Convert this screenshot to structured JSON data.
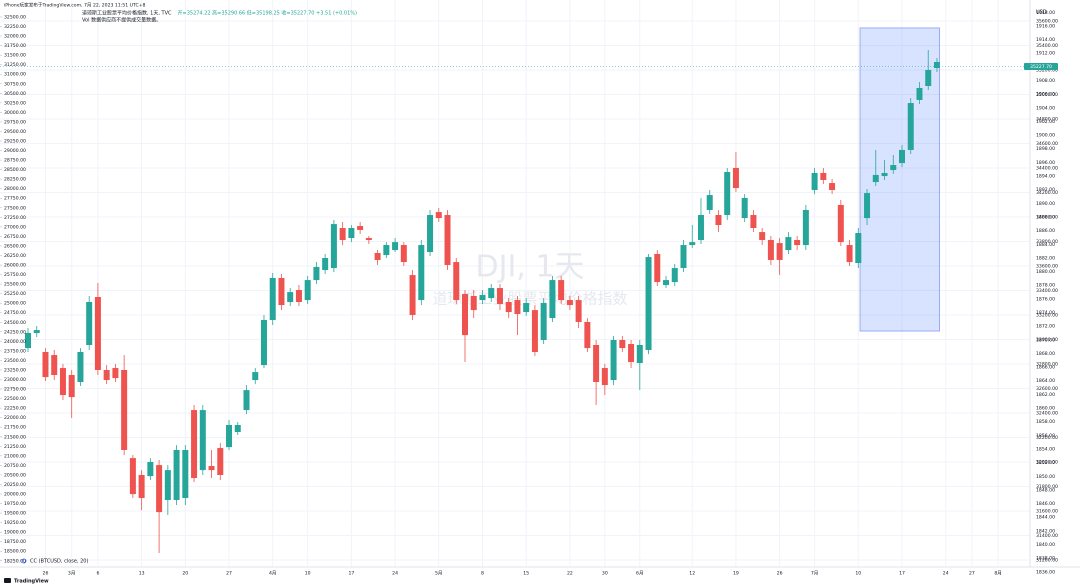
{
  "chart_data": {
    "type": "candlestick",
    "posted": "iPhone玩家发布于TradingView.com, 7月 22, 2023 11:51 UTC+8",
    "title": "道琼斯工业股票平均价格指数, 1天, TVC",
    "ohlc_text": "开=35274.22 高=35290.66 低=35198.25 收=35227.70 +3.51 (+0.01%)",
    "volume_note": "Vol 数据供应商不提供成交量数据。",
    "watermark": "DJI, 1天",
    "watermark_subtitle": "道琼斯工业股票平均价格指数",
    "indicator": "CC (BTCUSD, close, 20)",
    "currency": "USD",
    "brand": "TradingView",
    "last_price": {
      "value": 35227.7,
      "label": "35227.70"
    },
    "up_color": "#26a69a",
    "down_color": "#ef5350",
    "grid": true,
    "categories": [
      null,
      null,
      "26",
      null,
      null,
      "3月",
      null,
      null,
      "6",
      null,
      null,
      null,
      null,
      "13",
      null,
      null,
      null,
      null,
      "20",
      null,
      null,
      null,
      null,
      "27",
      null,
      null,
      null,
      null,
      "4月",
      null,
      null,
      null,
      "10",
      null,
      null,
      null,
      null,
      "17",
      null,
      null,
      null,
      null,
      "24",
      null,
      null,
      null,
      null,
      "5月",
      null,
      null,
      null,
      null,
      "8",
      null,
      null,
      null,
      null,
      "15",
      null,
      null,
      null,
      null,
      "22",
      null,
      null,
      null,
      "30",
      null,
      null,
      null,
      "6月",
      null,
      null,
      null,
      null,
      null,
      "12",
      null,
      null,
      null,
      null,
      "19",
      null,
      null,
      null,
      null,
      "26",
      null,
      null,
      null,
      "7月",
      null,
      null,
      null,
      null,
      "10",
      null,
      null,
      null,
      null,
      "17",
      null,
      null,
      null,
      null,
      "24",
      null,
      null,
      "27",
      null,
      null,
      "8月"
    ],
    "open": [
      32930,
      33053,
      32898,
      32873,
      32767,
      32710,
      32653,
      32955,
      33347,
      32751,
      32767,
      32751,
      32032,
      31894,
      31885,
      31975,
      31690,
      31690,
      31706,
      32424,
      31934,
      31967,
      32114,
      32122,
      32245,
      32424,
      32669,
      32791,
      33159,
      33502,
      33306,
      33404,
      33322,
      33485,
      33567,
      33583,
      33910,
      33828,
      33926,
      33828,
      33706,
      33689,
      33730,
      33771,
      33526,
      33322,
      33714,
      34040,
      34016,
      33632,
      33371,
      33355,
      33322,
      33338,
      33420,
      33306,
      33322,
      33224,
      33240,
      32996,
      33175,
      33485,
      33322,
      33322,
      33143,
      32955,
      32767,
      32669,
      32996,
      32963,
      32808,
      32914,
      33698,
      33445,
      33469,
      33583,
      33771,
      33812,
      34057,
      34016,
      34016,
      34400,
      33991,
      34016,
      33877,
      33812,
      33787,
      33730,
      33812,
      33771,
      34220,
      34359,
      34277,
      34098,
      33771,
      33624,
      33991,
      34285,
      34334,
      34383,
      34440,
      34547,
      34955,
      35069,
      35216,
      null,
      null,
      null,
      null,
      null,
      null,
      null
    ],
    "high": [
      33094,
      33110,
      32930,
      32914,
      32800,
      32751,
      32930,
      33355,
      33461,
      32791,
      32800,
      32873,
      32057,
      31934,
      32032,
      32016,
      31975,
      32138,
      32138,
      32465,
      32465,
      32098,
      32155,
      32343,
      32326,
      32628,
      32767,
      33200,
      33543,
      33535,
      33420,
      33445,
      33518,
      33632,
      33698,
      33975,
      33959,
      33934,
      33959,
      33845,
      33730,
      33795,
      33828,
      33795,
      33567,
      33812,
      34057,
      34073,
      34057,
      33665,
      33404,
      33404,
      33404,
      33453,
      33453,
      33338,
      33355,
      33338,
      33281,
      33338,
      33518,
      33518,
      33355,
      33355,
      33175,
      32996,
      32800,
      33028,
      33028,
      32996,
      32996,
      33698,
      33730,
      33518,
      33616,
      33812,
      33934,
      34155,
      34220,
      34057,
      34400,
      34530,
      34187,
      34057,
      33910,
      33845,
      33828,
      33877,
      33845,
      34098,
      34400,
      34400,
      34310,
      34139,
      33812,
      33910,
      34228,
      34547,
      34465,
      34506,
      34587,
      34971,
      35102,
      35363,
      35298,
      null,
      null,
      null,
      null,
      null,
      null,
      null
    ],
    "low": [
      32898,
      33020,
      32661,
      32669,
      32506,
      32359,
      32620,
      32914,
      32710,
      32636,
      32653,
      32057,
      31706,
      31608,
      31853,
      31257,
      31567,
      31649,
      31649,
      31836,
      31894,
      31869,
      31853,
      32098,
      32220,
      32391,
      32636,
      32767,
      33118,
      33240,
      33273,
      33273,
      33290,
      33453,
      33535,
      33551,
      33771,
      33795,
      33861,
      33779,
      33608,
      33665,
      33714,
      33600,
      33159,
      33281,
      33681,
      33959,
      33567,
      33290,
      32816,
      33175,
      33290,
      33306,
      33240,
      33175,
      33036,
      33192,
      32865,
      32963,
      33143,
      33290,
      33240,
      33094,
      32898,
      32465,
      32547,
      32628,
      32898,
      32767,
      32587,
      32881,
      33436,
      33420,
      33436,
      33551,
      33747,
      33779,
      34024,
      33877,
      33975,
      34204,
      33959,
      33877,
      33771,
      33608,
      33526,
      33698,
      33730,
      33730,
      34187,
      34269,
      34187,
      33763,
      33600,
      33583,
      33934,
      34253,
      34302,
      34351,
      34408,
      34514,
      34922,
      35036,
      35183,
      null,
      null,
      null,
      null,
      null,
      null,
      null
    ],
    "close": [
      33053,
      33077,
      32693,
      32710,
      32547,
      32530,
      32898,
      33306,
      32751,
      32669,
      32685,
      32098,
      31738,
      31706,
      32000,
      31591,
      31934,
      32098,
      32098,
      31869,
      32424,
      31934,
      31894,
      32302,
      32302,
      32587,
      32734,
      33159,
      33502,
      33281,
      33387,
      33306,
      33485,
      33592,
      33665,
      33942,
      33812,
      33910,
      33894,
      33812,
      33649,
      33771,
      33795,
      33632,
      33200,
      33771,
      34016,
      33991,
      33608,
      33322,
      33036,
      33240,
      33363,
      33420,
      33290,
      33224,
      33208,
      33298,
      32898,
      33298,
      33485,
      33322,
      33281,
      33143,
      32930,
      32653,
      32628,
      32996,
      32930,
      32816,
      32955,
      33673,
      33469,
      33485,
      33583,
      33771,
      33795,
      34016,
      34179,
      33934,
      34367,
      34236,
      34155,
      33910,
      33812,
      33649,
      33649,
      33836,
      33771,
      34057,
      34359,
      34302,
      34220,
      33795,
      33632,
      33869,
      34195,
      34343,
      34359,
      34424,
      34547,
      34930,
      35053,
      35200,
      35265,
      null,
      null,
      null,
      null,
      null,
      null,
      null
    ],
    "highlight": {
      "from": 95.2,
      "to": 104.3,
      "top": 35543,
      "bottom": 33069
    },
    "ylim": [
      18087,
      32945
    ],
    "yticks": [
      {
        "value": 18250,
        "label": "18250.00"
      },
      {
        "value": 18500,
        "label": "18500.00"
      },
      {
        "value": 18750,
        "label": "18750.00"
      },
      {
        "value": 19000,
        "label": "19000.00"
      },
      {
        "value": 19250,
        "label": "19250.00"
      },
      {
        "value": 19500,
        "label": "19500.00"
      },
      {
        "value": 19750,
        "label": "19750.00"
      },
      {
        "value": 20000,
        "label": "20000.00"
      },
      {
        "value": 20250,
        "label": "20250.00"
      },
      {
        "value": 20500,
        "label": "20500.00"
      },
      {
        "value": 20750,
        "label": "20750.00"
      },
      {
        "value": 21000,
        "label": "21000.00"
      },
      {
        "value": 21250,
        "label": "21250.00"
      },
      {
        "value": 21500,
        "label": "21500.00"
      },
      {
        "value": 21750,
        "label": "21750.00"
      },
      {
        "value": 22000,
        "label": "22000.00"
      },
      {
        "value": 22250,
        "label": "22250.00"
      },
      {
        "value": 22500,
        "label": "22500.00"
      },
      {
        "value": 22750,
        "label": "22750.00"
      },
      {
        "value": 23000,
        "label": "23000.00"
      },
      {
        "value": 23250,
        "label": "23250.00"
      },
      {
        "value": 23500,
        "label": "23500.00"
      },
      {
        "value": 23750,
        "label": "23750.00"
      },
      {
        "value": 24000,
        "label": "24000.00"
      },
      {
        "value": 24250,
        "label": "24250.00"
      },
      {
        "value": 24500,
        "label": "24500.00"
      },
      {
        "value": 24750,
        "label": "24750.00"
      },
      {
        "value": 25000,
        "label": "25000.00"
      },
      {
        "value": 25250,
        "label": "25250.00"
      },
      {
        "value": 25500,
        "label": "25500.00"
      },
      {
        "value": 25750,
        "label": "25750.00"
      },
      {
        "value": 26000,
        "label": "26000.00"
      },
      {
        "value": 26250,
        "label": "26250.00"
      },
      {
        "value": 26500,
        "label": "26500.00"
      },
      {
        "value": 26750,
        "label": "26750.00"
      },
      {
        "value": 27000,
        "label": "27000.00"
      },
      {
        "value": 27250,
        "label": "27250.00"
      },
      {
        "value": 27500,
        "label": "27500.00"
      },
      {
        "value": 27750,
        "label": "27750.00"
      },
      {
        "value": 28000,
        "label": "28000.00"
      },
      {
        "value": 28250,
        "label": "28250.00"
      },
      {
        "value": 28500,
        "label": "28500.00"
      },
      {
        "value": 28750,
        "label": "28750.00"
      },
      {
        "value": 29000,
        "label": "29000.00"
      },
      {
        "value": 29250,
        "label": "29250.00"
      },
      {
        "value": 29500,
        "label": "29500.00"
      },
      {
        "value": 29750,
        "label": "29750.00"
      },
      {
        "value": 30000,
        "label": "30000.00"
      },
      {
        "value": 30250,
        "label": "30250.00"
      },
      {
        "value": 30500,
        "label": "30500.00"
      },
      {
        "value": 30750,
        "label": "30750.00"
      },
      {
        "value": 31000,
        "label": "31000.00"
      },
      {
        "value": 31250,
        "label": "31250.00"
      },
      {
        "value": 31500,
        "label": "31500.00"
      },
      {
        "value": 31750,
        "label": "31750.00"
      },
      {
        "value": 32000,
        "label": "32000.00"
      },
      {
        "value": 32250,
        "label": "32250.00"
      },
      {
        "value": 32500,
        "label": "32500.00"
      }
    ],
    "y2lim": [
      31143,
      35771
    ],
    "y2ticks": [
      {
        "value": 31200,
        "label": "31200.00"
      },
      {
        "value": 31400,
        "label": "31400.00"
      },
      {
        "value": 31600,
        "label": "31600.00"
      },
      {
        "value": 31800,
        "label": "31800.00"
      },
      {
        "value": 32000,
        "label": "32000.00"
      },
      {
        "value": 32200,
        "label": "32200.00"
      },
      {
        "value": 32400,
        "label": "32400.00"
      },
      {
        "value": 32600,
        "label": "32600.00"
      },
      {
        "value": 32800,
        "label": "32800.00"
      },
      {
        "value": 33000,
        "label": "33000.00"
      },
      {
        "value": 33200,
        "label": "33200.00"
      },
      {
        "value": 33400,
        "label": "33400.00"
      },
      {
        "value": 33600,
        "label": "33600.00"
      },
      {
        "value": 33800,
        "label": "33800.00"
      },
      {
        "value": 34000,
        "label": "34000.00"
      },
      {
        "value": 34200,
        "label": "34200.00"
      },
      {
        "value": 34400,
        "label": "34400.00"
      },
      {
        "value": 34600,
        "label": "34600.00"
      },
      {
        "value": 34800,
        "label": "34800.00"
      },
      {
        "value": 35000,
        "label": "35000.00"
      },
      {
        "value": 35200,
        "label": "35200.00"
      },
      {
        "value": 35400,
        "label": "35400.00"
      },
      {
        "value": 35600,
        "label": "35600.00"
      }
    ],
    "y3lim": [
      1836.7,
      1919.8
    ],
    "y3ticks": [
      {
        "value": 1836,
        "label": "1836.00"
      },
      {
        "value": 1838,
        "label": "1838.00"
      },
      {
        "value": 1840,
        "label": "1840.00"
      },
      {
        "value": 1842,
        "label": "1842.00"
      },
      {
        "value": 1844,
        "label": "1844.00"
      },
      {
        "value": 1846,
        "label": "1846.00"
      },
      {
        "value": 1848,
        "label": "1848.00"
      },
      {
        "value": 1850,
        "label": "1850.00"
      },
      {
        "value": 1852,
        "label": "1852.00"
      },
      {
        "value": 1854,
        "label": "1854.00"
      },
      {
        "value": 1856,
        "label": "1856.00"
      },
      {
        "value": 1858,
        "label": "1858.00"
      },
      {
        "value": 1860,
        "label": "1860.00"
      },
      {
        "value": 1862,
        "label": "1862.00"
      },
      {
        "value": 1864,
        "label": "1864.00"
      },
      {
        "value": 1866,
        "label": "1866.00"
      },
      {
        "value": 1868,
        "label": "1868.00"
      },
      {
        "value": 1870,
        "label": "1870.00"
      },
      {
        "value": 1872,
        "label": "1872.00"
      },
      {
        "value": 1874,
        "label": "1874.00"
      },
      {
        "value": 1876,
        "label": "1876.00"
      },
      {
        "value": 1878,
        "label": "1878.00"
      },
      {
        "value": 1880,
        "label": "1880.00"
      },
      {
        "value": 1882,
        "label": "1882.00"
      },
      {
        "value": 1884,
        "label": "1884.00"
      },
      {
        "value": 1886,
        "label": "1886.00"
      },
      {
        "value": 1888,
        "label": "1888.00"
      },
      {
        "value": 1890,
        "label": "1890.00"
      },
      {
        "value": 1892,
        "label": "1892.00"
      },
      {
        "value": 1894,
        "label": "1894.00"
      },
      {
        "value": 1896,
        "label": "1896.00"
      },
      {
        "value": 1898,
        "label": "1898.00"
      },
      {
        "value": 1900,
        "label": "1900.00"
      },
      {
        "value": 1902,
        "label": "1902.00"
      },
      {
        "value": 1904,
        "label": "1904.00"
      },
      {
        "value": 1906,
        "label": "1906.00"
      },
      {
        "value": 1908,
        "label": "1908.00"
      },
      {
        "value": 1910,
        "label": "1910.00"
      },
      {
        "value": 1912,
        "label": "1912.00"
      },
      {
        "value": 1914,
        "label": "1914.00"
      },
      {
        "value": 1916,
        "label": "1916.00"
      },
      {
        "value": 1918,
        "label": "1918.00"
      }
    ]
  }
}
